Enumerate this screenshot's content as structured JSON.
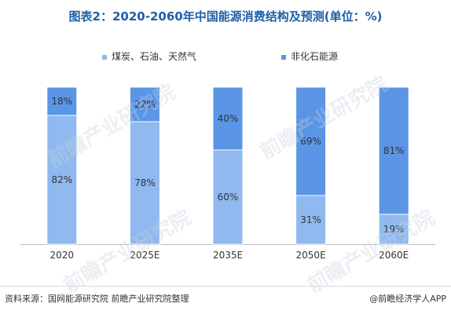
{
  "title": "图表2：2020-2060年中国能源消费结构及预测(单位：%)",
  "footer": {
    "source": "资料来源：国网能源研究院 前瞻产业研究院整理",
    "brand": "@前瞻经济学人APP"
  },
  "watermark": {
    "text": "前瞻产业研究院"
  },
  "colors": {
    "coal_oil_gas": "#8fb9ef",
    "non_fossil": "#5b95e6",
    "title": "#1f5fa8"
  },
  "chart_data": {
    "type": "bar",
    "stacked": true,
    "percent": true,
    "categories": [
      "2020",
      "2025E",
      "2035E",
      "2050E",
      "2060E"
    ],
    "series": [
      {
        "name": "煤炭、石油、天然气",
        "values": [
          82,
          78,
          60,
          31,
          19
        ],
        "labels": [
          "82%",
          "78%",
          "60%",
          "31%",
          "19%"
        ]
      },
      {
        "name": "非化石能源",
        "values": [
          18,
          22,
          40,
          69,
          81
        ],
        "labels": [
          "18%",
          "22%",
          "40%",
          "69%",
          "81%"
        ]
      }
    ],
    "ylim": [
      0,
      100
    ],
    "legend": "top",
    "grid": false
  }
}
